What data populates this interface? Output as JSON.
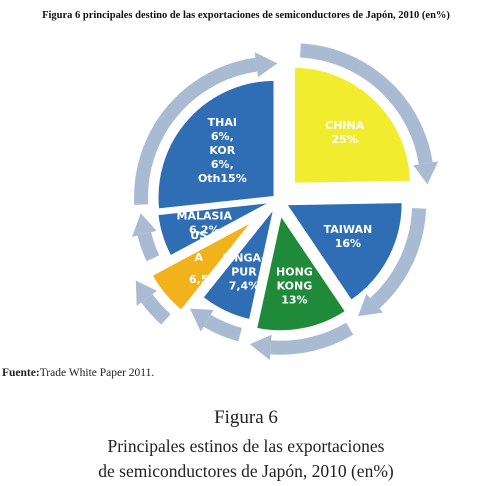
{
  "figure": {
    "top_title": "Figura 6 principales destino de las exportaciones de semiconductores de Japón, 2010 (en%)",
    "source_label": "Fuente:",
    "source_text": "Trade White Paper 2011.",
    "caption_number": "Figura 6",
    "caption_line1": "Principales estinos de las exportaciones",
    "caption_line2": "de semiconductores de Japón, 2010 (en%)"
  },
  "chart_data": {
    "type": "pie",
    "title": "Figura 6 principales destino de las exportaciones de semiconductores de Japón, 2010 (en%)",
    "slices": [
      {
        "lines": [
          "CHINA",
          "25%"
        ],
        "value": 25,
        "color": "#f2ec2f",
        "text_color": "#c0392b"
      },
      {
        "lines": [
          "TAIWAN",
          "16%"
        ],
        "value": 16,
        "color": "#2f6db4",
        "text_color": "#ffffff"
      },
      {
        "lines": [
          "HONG",
          "KONG",
          "13%"
        ],
        "value": 13,
        "color": "#1f8b3a",
        "text_color": "#ffffff"
      },
      {
        "lines": [
          "SINGA-",
          "PUR",
          "7,4%"
        ],
        "value": 7.4,
        "color": "#2f6db4",
        "text_color": "#ffffff"
      },
      {
        "lines": [
          "US",
          "A",
          "6,5",
          "%"
        ],
        "value": 6.5,
        "color": "#f2b21c",
        "text_color": "#d01c1c"
      },
      {
        "lines": [
          "MALASIA",
          "6,2%"
        ],
        "value": 6.2,
        "color": "#2f6db4",
        "text_color": "#ffffff"
      },
      {
        "lines": [
          "THAI",
          "6%,",
          "KOR",
          "6%,",
          "Oth15%"
        ],
        "value": 27,
        "color": "#2f6db4",
        "text_color": "#ffffff"
      }
    ]
  }
}
